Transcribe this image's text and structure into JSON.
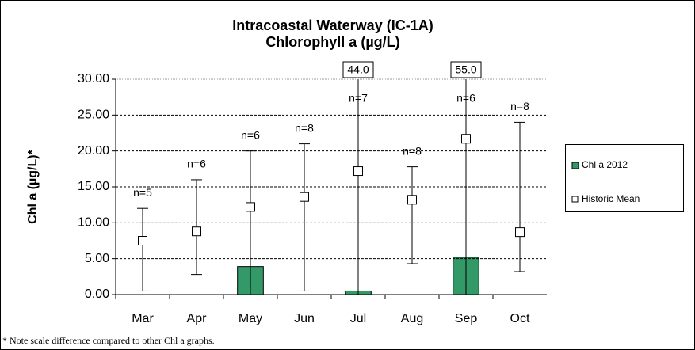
{
  "chart_data": {
    "type": "bar",
    "title": [
      "Intracoastal Waterway (IC-1A)",
      "Chlorophyll a (µg/L)"
    ],
    "y_label": "Chl a (µg/L)*",
    "footnote": "* Note scale difference compared to other Chl a graphs.",
    "categories": [
      "Mar",
      "Apr",
      "May",
      "Jun",
      "Jul",
      "Aug",
      "Sep",
      "Oct"
    ],
    "series": [
      {
        "name": "Chl a 2012",
        "color": "#339966",
        "values": [
          null,
          null,
          3.9,
          null,
          0.5,
          null,
          5.2,
          null
        ]
      },
      {
        "name": "Historic Mean",
        "type": "scatter",
        "color": "#ffffff",
        "values": [
          7.5,
          8.8,
          12.2,
          13.6,
          17.2,
          13.2,
          21.7,
          8.7
        ],
        "error_min": [
          0.5,
          2.8,
          0,
          0.5,
          0,
          4.3,
          0,
          3.2
        ],
        "error_max": [
          12,
          16,
          20,
          21,
          44,
          17.8,
          55,
          24
        ],
        "error_max_labels": [
          null,
          null,
          null,
          null,
          "44.0",
          null,
          "55.0",
          null
        ]
      }
    ],
    "n_labels": [
      "n=5",
      "n=6",
      "n=6",
      "n=8",
      "n=7",
      "n=8",
      "n=6",
      "n=8"
    ],
    "ylim": [
      0,
      30
    ],
    "yticks": [
      {
        "value": 0,
        "label": "0.00"
      },
      {
        "value": 5,
        "label": "5.00"
      },
      {
        "value": 10,
        "label": "10.00"
      },
      {
        "value": 15,
        "label": "15.00"
      },
      {
        "value": 20,
        "label": "20.00"
      },
      {
        "value": 25,
        "label": "25.00"
      },
      {
        "value": 30,
        "label": "30.00"
      }
    ],
    "grid": true,
    "legend": "right"
  }
}
